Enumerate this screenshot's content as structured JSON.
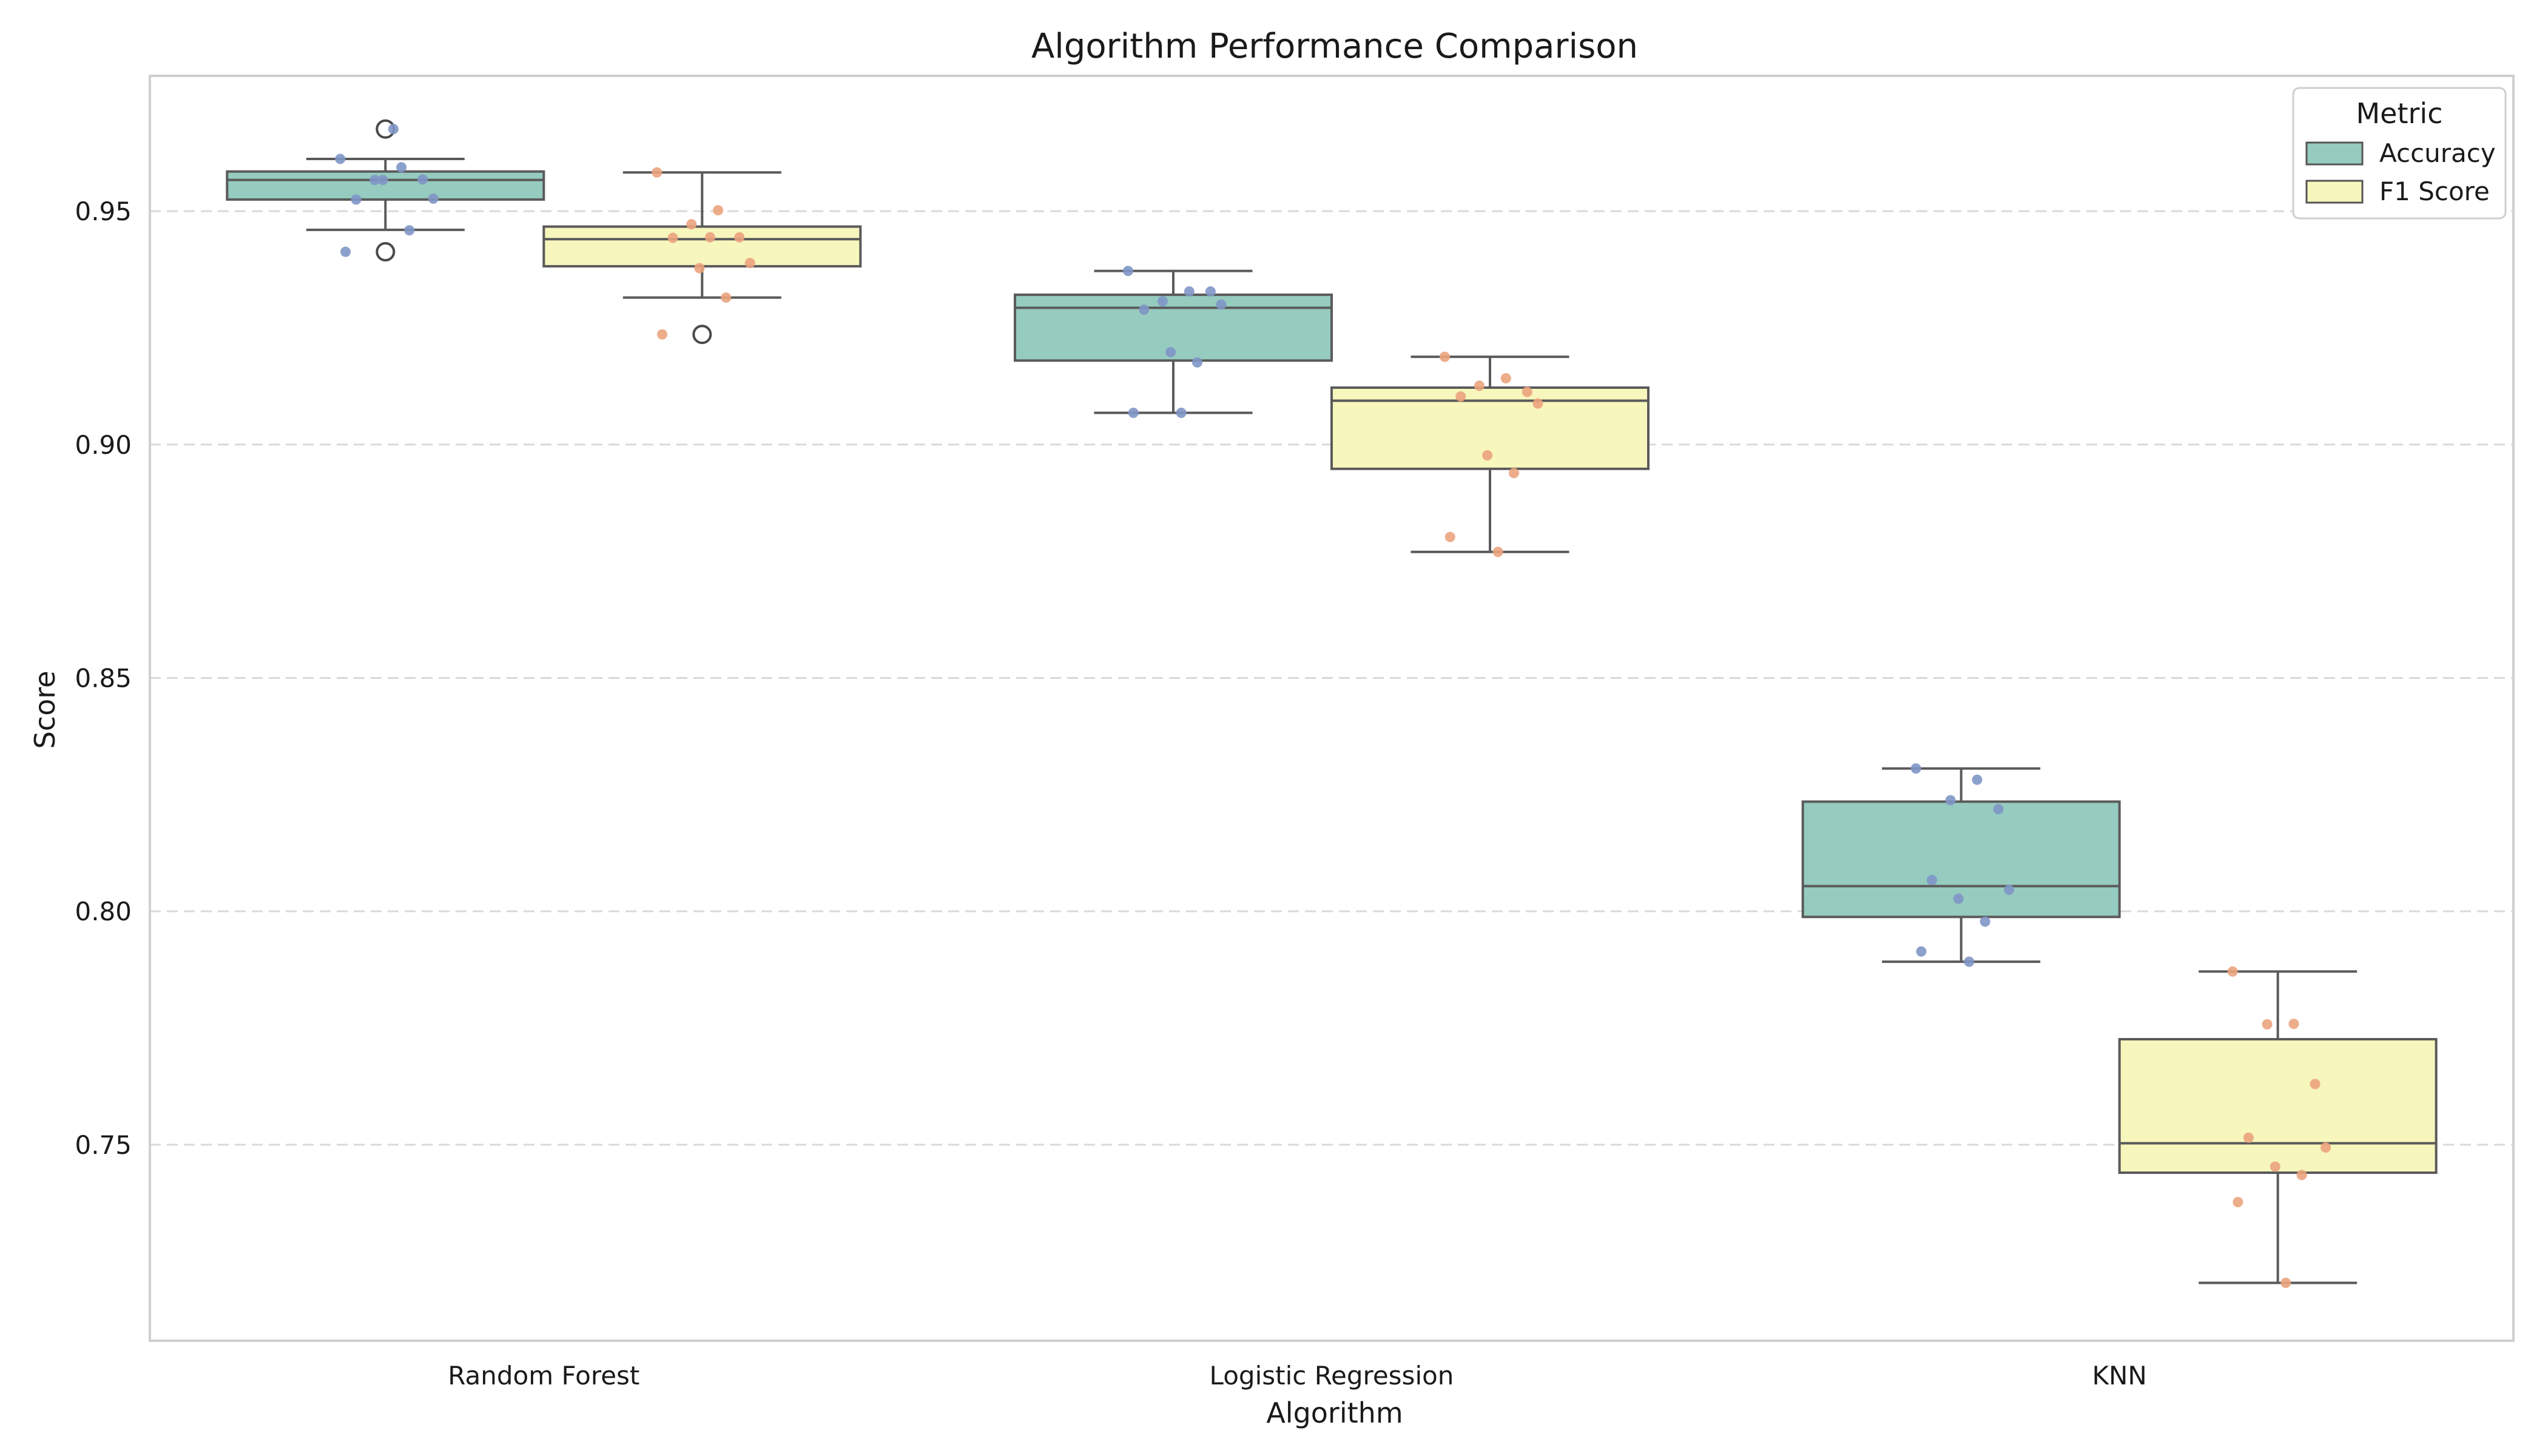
{
  "chart_data": {
    "type": "box",
    "title": "Algorithm Performance Comparison",
    "xlabel": "Algorithm",
    "ylabel": "Score",
    "categories": [
      "Random Forest",
      "Logistic Regression",
      "KNN"
    ],
    "ylim": [
      0.708,
      0.979
    ],
    "yticks": [
      0.75,
      0.8,
      0.85,
      0.9,
      0.95
    ],
    "ytick_labels": [
      "0.75",
      "0.80",
      "0.85",
      "0.90",
      "0.95"
    ],
    "grid": {
      "y": true,
      "x": false,
      "style": "dashed"
    },
    "legend": {
      "title": "Metric",
      "placement": "top-right"
    },
    "series": [
      {
        "name": "Accuracy",
        "color": "#96cbbf",
        "point_color": "#7f96c7",
        "boxes": [
          {
            "category": "Random Forest",
            "whisker_low": 0.946,
            "q1": 0.9525,
            "median": 0.9567,
            "q3": 0.9585,
            "whisker_high": 0.9612,
            "outliers": [
              0.9676,
              0.9413
            ],
            "points": [
              0.9612,
              0.9594,
              0.9567,
              0.9568,
              0.9525,
              0.9527,
              0.9567,
              0.9459,
              0.9413,
              0.9676
            ]
          },
          {
            "category": "Logistic Regression",
            "whisker_low": 0.9068,
            "q1": 0.918,
            "median": 0.9293,
            "q3": 0.9321,
            "whisker_high": 0.9372,
            "outliers": [],
            "points": [
              0.9372,
              0.9328,
              0.9307,
              0.9328,
              0.9289,
              0.93,
              0.9198,
              0.9176,
              0.9068,
              0.9068
            ]
          },
          {
            "category": "KNN",
            "whisker_low": 0.7892,
            "q1": 0.7988,
            "median": 0.8054,
            "q3": 0.8235,
            "whisker_high": 0.8306,
            "outliers": [],
            "points": [
              0.8306,
              0.8282,
              0.8238,
              0.8219,
              0.8067,
              0.8046,
              0.8027,
              0.7978,
              0.7914,
              0.7892
            ]
          }
        ]
      },
      {
        "name": "F1 Score",
        "color": "#f7f6bc",
        "point_color": "#eba37d",
        "boxes": [
          {
            "category": "Random Forest",
            "whisker_low": 0.9315,
            "q1": 0.9382,
            "median": 0.944,
            "q3": 0.9467,
            "whisker_high": 0.9583,
            "outliers": [
              0.9236
            ],
            "points": [
              0.9583,
              0.9502,
              0.9472,
              0.9444,
              0.9443,
              0.9389,
              0.9378,
              0.9315,
              0.9236,
              0.9444
            ]
          },
          {
            "category": "Logistic Regression",
            "whisker_low": 0.877,
            "q1": 0.8948,
            "median": 0.9094,
            "q3": 0.9122,
            "whisker_high": 0.9188,
            "outliers": [],
            "points": [
              0.9188,
              0.9142,
              0.9126,
              0.9113,
              0.9103,
              0.9088,
              0.8977,
              0.8939,
              0.8802,
              0.877
            ]
          },
          {
            "category": "KNN",
            "whisker_low": 0.7204,
            "q1": 0.744,
            "median": 0.7503,
            "q3": 0.7726,
            "whisker_high": 0.7871,
            "outliers": [],
            "points": [
              0.7871,
              0.7759,
              0.7758,
              0.763,
              0.7515,
              0.7494,
              0.7453,
              0.7435,
              0.7377,
              0.7204
            ]
          }
        ]
      }
    ]
  }
}
